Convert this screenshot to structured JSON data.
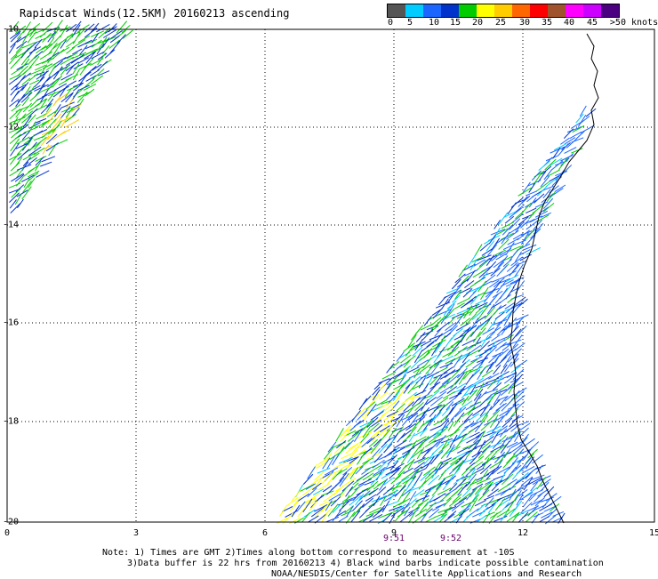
{
  "title": "Rapidscat Winds(12.5KM) 20160213 ascending",
  "colorbar": {
    "colors": [
      "#555555",
      "#00ccff",
      "#1a66ff",
      "#0033cc",
      "#00cc00",
      "#ffff00",
      "#ffcc00",
      "#ff6600",
      "#ff0000",
      "#a0522d",
      "#ff00ff",
      "#cc00ff",
      "#4b0082"
    ],
    "labels": [
      "0",
      "5",
      "10",
      "15",
      "20",
      "25",
      "30",
      "35",
      "40",
      "45",
      ">50 knots"
    ]
  },
  "y_axis": {
    "ticks": [
      "-10",
      "-12",
      "-14",
      "-16",
      "-18",
      "-20"
    ]
  },
  "x_axis": {
    "ticks": [
      "0",
      "3",
      "6",
      "9",
      "12",
      "15"
    ]
  },
  "times": [
    {
      "label": "9:51"
    },
    {
      "label": "9:52"
    }
  ],
  "notes": [
    "Note: 1) Times are GMT 2)Times along bottom correspond to measurement at -10S",
    "3)Data buffer is 22 hrs from 20160213 4) Black wind barbs indicate possible contamination",
    "NOAA/NESDIS/Center for Satellite Applications and Research"
  ]
}
